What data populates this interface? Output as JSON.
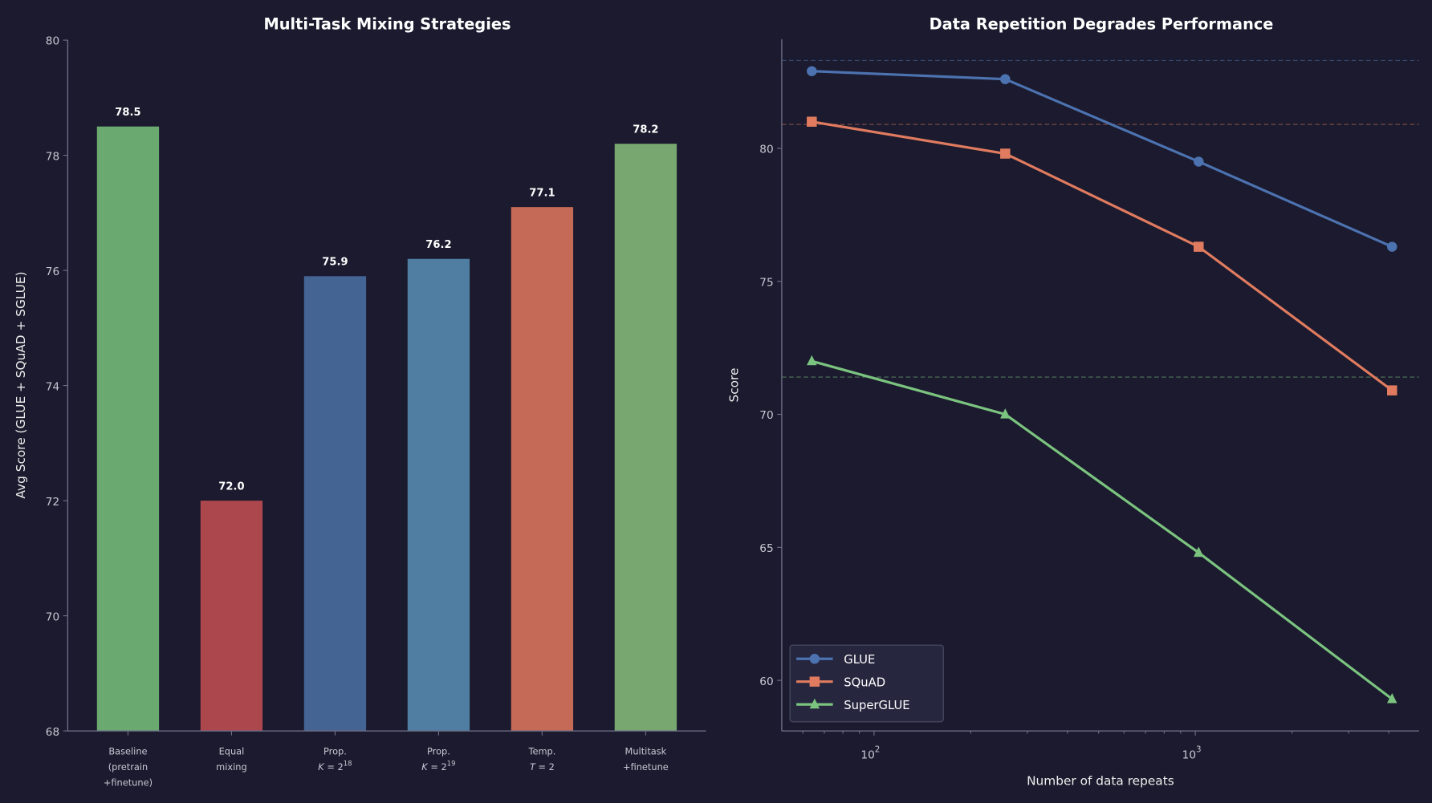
{
  "background": "#1b1a2e",
  "chart_data": [
    {
      "type": "bar",
      "title": "Multi-Task Mixing Strategies",
      "xlabel": "",
      "ylabel": "Avg Score (GLUE + SQuAD + SGLUE)",
      "categories": [
        [
          "Baseline",
          "(pretrain",
          "+finetune)"
        ],
        [
          "Equal",
          "mixing"
        ],
        [
          "Prop.",
          "K = 2^18"
        ],
        [
          "Prop.",
          "K = 2^19"
        ],
        [
          "Temp.",
          "T = 2"
        ],
        [
          "Multitask",
          "+finetune"
        ]
      ],
      "values": [
        78.5,
        72.0,
        75.9,
        76.2,
        77.1,
        78.2
      ],
      "data_labels": [
        "78.5",
        "72.0",
        "75.9",
        "76.2",
        "77.1",
        "78.2"
      ],
      "colors": [
        "#6aaa70",
        "#ab474d",
        "#446494",
        "#4f7ea2",
        "#c46a57",
        "#78a870"
      ],
      "ylim": [
        68,
        80
      ],
      "yticks": [
        68,
        70,
        72,
        74,
        76,
        78,
        80
      ],
      "grid": false
    },
    {
      "type": "line",
      "title": "Data Repetition Degrades Performance",
      "xlabel": "Number of data repeats",
      "ylabel": "Score",
      "xscale": "log",
      "x": [
        64,
        256,
        1024,
        4096
      ],
      "xlim": [
        51.6,
        4970
      ],
      "xticks": [
        {
          "value": 100,
          "base": "10",
          "exp": "2"
        },
        {
          "value": 1000,
          "base": "10",
          "exp": "3"
        }
      ],
      "ylim": [
        58.1,
        84.1
      ],
      "yticks": [
        60,
        65,
        70,
        75,
        80
      ],
      "grid": false,
      "legend_placement": "lower-left",
      "series": [
        {
          "name": "GLUE",
          "values": [
            82.9,
            82.6,
            79.5,
            76.3
          ],
          "color": "#4c72b0",
          "marker": "circle",
          "baseline": 83.3
        },
        {
          "name": "SQuAD",
          "values": [
            81.0,
            79.8,
            76.3,
            70.9
          ],
          "color": "#e07b5f",
          "marker": "square",
          "baseline": 80.9
        },
        {
          "name": "SuperGLUE",
          "values": [
            72.0,
            70.0,
            64.8,
            59.3
          ],
          "color": "#7bc47f",
          "marker": "triangle",
          "baseline": 71.4
        }
      ]
    }
  ]
}
